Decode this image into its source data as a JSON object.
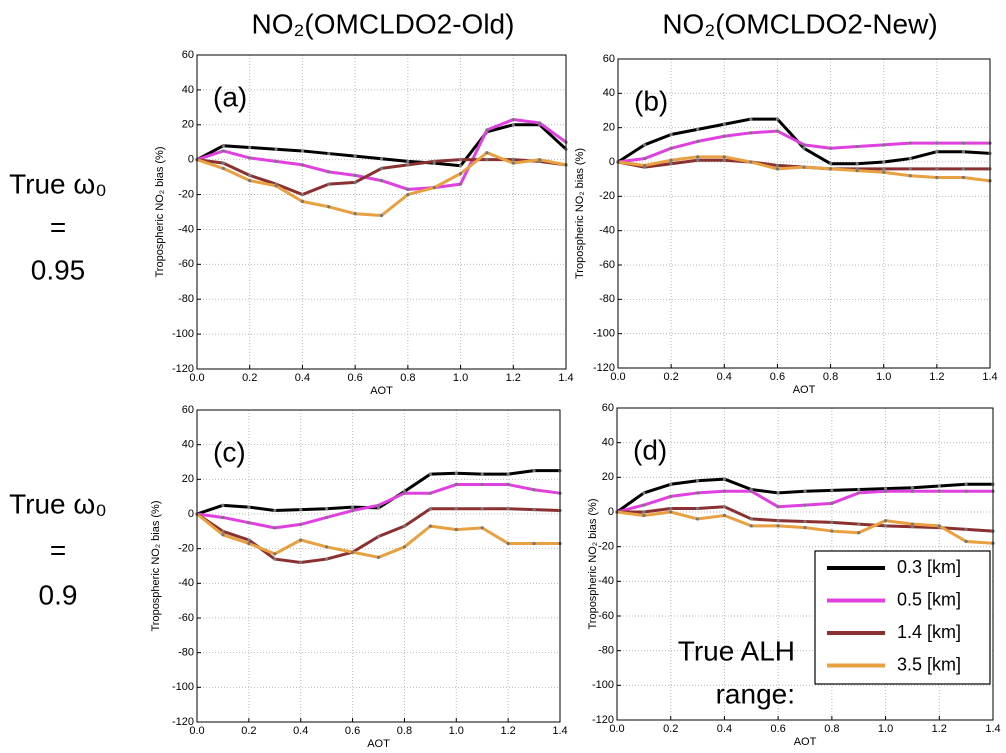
{
  "column_titles": [
    "NO₂(OMCLDO2-Old)",
    "NO₂(OMCLDO2-New)"
  ],
  "row_labels": [
    [
      "True ω₀",
      "=",
      "0.95"
    ],
    [
      "True ω₀",
      "=",
      "0.9"
    ]
  ],
  "legend": {
    "title": [
      "True ALH",
      "range:"
    ]
  },
  "chart_data": [
    {
      "type": "line",
      "label": "(a)",
      "ylabel": "Tropospheric NO₂ bias (%)",
      "xlabel": "AOT",
      "grid": true,
      "x": [
        0,
        0.1,
        0.2,
        0.3,
        0.4,
        0.5,
        0.6,
        0.7,
        0.8,
        0.9,
        1.0,
        1.1,
        1.2,
        1.3,
        1.4
      ],
      "xlim": [
        0,
        1.4
      ],
      "ylim": [
        -120,
        60
      ],
      "xticks": [
        {
          "value": 0,
          "label": "0.0"
        },
        {
          "value": 0.2,
          "label": "0.2"
        },
        {
          "value": 0.4,
          "label": "0.4"
        },
        {
          "value": 0.6,
          "label": "0.6"
        },
        {
          "value": 0.8,
          "label": "0.8"
        },
        {
          "value": 1,
          "label": "1.0"
        },
        {
          "value": 1.2,
          "label": "1.2"
        },
        {
          "value": 1.4,
          "label": "1.4"
        }
      ],
      "yticks": [
        -120,
        -100,
        -80,
        -60,
        -40,
        -20,
        0,
        20,
        40,
        60
      ],
      "series": [
        {
          "color": "#000000",
          "values": [
            0,
            8,
            7,
            6,
            5,
            3.5,
            2,
            0.5,
            -1,
            -2,
            -3.5,
            16,
            20,
            20,
            6
          ]
        },
        {
          "color": "#e040e0",
          "values": [
            0,
            5,
            1,
            -1,
            -3,
            -7,
            -9,
            -12,
            -17,
            -16,
            -14,
            17,
            23,
            21,
            10
          ]
        },
        {
          "color": "#8b3030",
          "values": [
            0,
            -2,
            -9,
            -14,
            -20,
            -14,
            -13,
            -5,
            -3,
            -1,
            0,
            0,
            0,
            -1,
            -3
          ]
        },
        {
          "color": "#e8a040",
          "values": [
            0,
            -5,
            -12,
            -15,
            -24,
            -27,
            -31,
            -32,
            -20,
            -16,
            -8,
            4,
            -2,
            0,
            -3
          ]
        }
      ]
    },
    {
      "type": "line",
      "label": "(b)",
      "ylabel": "Tropospheric NO₂ bias (%)",
      "xlabel": "AOT",
      "grid": true,
      "x": [
        0,
        0.1,
        0.2,
        0.3,
        0.4,
        0.5,
        0.6,
        0.7,
        0.8,
        0.9,
        1.0,
        1.1,
        1.2,
        1.3,
        1.4
      ],
      "xlim": [
        0,
        1.4
      ],
      "ylim": [
        -120,
        60
      ],
      "xticks": [
        {
          "value": 0,
          "label": "0.0"
        },
        {
          "value": 0.2,
          "label": "0.2"
        },
        {
          "value": 0.4,
          "label": "0.4"
        },
        {
          "value": 0.6,
          "label": "0.6"
        },
        {
          "value": 0.8,
          "label": "0.8"
        },
        {
          "value": 1,
          "label": "1.0"
        },
        {
          "value": 1.2,
          "label": "1.2"
        },
        {
          "value": 1.4,
          "label": "1.4"
        }
      ],
      "yticks": [
        -120,
        -100,
        -80,
        -60,
        -40,
        -20,
        0,
        20,
        40,
        60
      ],
      "series": [
        {
          "color": "#000000",
          "values": [
            0,
            10,
            16,
            19,
            22,
            25,
            25,
            8,
            -1,
            -1,
            0,
            2,
            6,
            6,
            5
          ]
        },
        {
          "color": "#e040e0",
          "values": [
            0,
            2,
            8,
            12,
            15,
            17,
            18,
            10,
            8,
            9,
            10,
            11,
            11,
            11,
            11
          ]
        },
        {
          "color": "#8b3030",
          "values": [
            0,
            -3,
            -1,
            1,
            1,
            0,
            -2,
            -3,
            -4,
            -4,
            -4,
            -4,
            -4,
            -4,
            -4
          ]
        },
        {
          "color": "#e8a040",
          "values": [
            0,
            -2,
            1,
            3,
            3,
            0,
            -4,
            -3,
            -4,
            -5,
            -6,
            -8,
            -9,
            -9,
            -11
          ]
        }
      ]
    },
    {
      "type": "line",
      "label": "(c)",
      "ylabel": "Tropospheric NO₂ bias (%)",
      "xlabel": "AOT",
      "grid": true,
      "x": [
        0,
        0.1,
        0.2,
        0.3,
        0.4,
        0.5,
        0.6,
        0.7,
        0.8,
        0.9,
        1.0,
        1.1,
        1.2,
        1.3,
        1.4
      ],
      "xlim": [
        0,
        1.4
      ],
      "ylim": [
        -120,
        60
      ],
      "xticks": [
        {
          "value": 0,
          "label": "0.0"
        },
        {
          "value": 0.2,
          "label": "0.2"
        },
        {
          "value": 0.4,
          "label": "0.4"
        },
        {
          "value": 0.6,
          "label": "0.6"
        },
        {
          "value": 0.8,
          "label": "0.8"
        },
        {
          "value": 1,
          "label": "1.0"
        },
        {
          "value": 1.2,
          "label": "1.2"
        },
        {
          "value": 1.4,
          "label": "1.4"
        }
      ],
      "yticks": [
        -120,
        -100,
        -80,
        -60,
        -40,
        -20,
        0,
        20,
        40,
        60
      ],
      "series": [
        {
          "color": "#000000",
          "values": [
            0,
            5,
            4,
            2,
            2.5,
            3,
            4,
            3.5,
            13,
            23,
            23.5,
            23,
            23,
            25,
            25
          ]
        },
        {
          "color": "#e040e0",
          "values": [
            0,
            -2,
            -5,
            -8,
            -6,
            -2,
            2,
            5,
            12,
            12,
            17,
            17,
            17,
            14,
            12
          ]
        },
        {
          "color": "#8b3030",
          "values": [
            0,
            -10,
            -15,
            -26,
            -28,
            -26,
            -22,
            -13,
            -7,
            3,
            3,
            3,
            3,
            2.5,
            2
          ]
        },
        {
          "color": "#e8a040",
          "values": [
            0,
            -12,
            -17,
            -23,
            -15,
            -19,
            -22,
            -25,
            -19,
            -7,
            -9,
            -8,
            -17,
            -17,
            -17
          ]
        }
      ]
    },
    {
      "type": "line",
      "label": "(d)",
      "ylabel": "Tropospheric NO₂ bias (%)",
      "xlabel": "AOT",
      "grid": true,
      "x": [
        0,
        0.1,
        0.2,
        0.3,
        0.4,
        0.5,
        0.6,
        0.7,
        0.8,
        0.9,
        1.0,
        1.1,
        1.2,
        1.3,
        1.4
      ],
      "xlim": [
        0,
        1.4
      ],
      "ylim": [
        -120,
        60
      ],
      "xticks": [
        {
          "value": 0,
          "label": "0.0"
        },
        {
          "value": 0.2,
          "label": "0.2"
        },
        {
          "value": 0.4,
          "label": "0.4"
        },
        {
          "value": 0.6,
          "label": "0.6"
        },
        {
          "value": 0.8,
          "label": "0.8"
        },
        {
          "value": 1,
          "label": "1.0"
        },
        {
          "value": 1.2,
          "label": "1.2"
        },
        {
          "value": 1.4,
          "label": "1.4"
        }
      ],
      "yticks": [
        -120,
        -100,
        -80,
        -60,
        -40,
        -20,
        0,
        20,
        40,
        60
      ],
      "series": [
        {
          "name": "0.3 [km]",
          "color": "#000000",
          "values": [
            0,
            11,
            16,
            18,
            19,
            13,
            11,
            12,
            12.5,
            13,
            13.5,
            14,
            15,
            16,
            16
          ]
        },
        {
          "name": "0.5 [km]",
          "color": "#e040e0",
          "values": [
            0,
            4,
            9,
            11,
            12,
            12,
            3,
            4,
            5,
            11,
            12,
            12,
            12,
            12,
            12
          ]
        },
        {
          "name": "1.4 [km]",
          "color": "#8b3030",
          "values": [
            0,
            0,
            2,
            2,
            3,
            -4,
            -5,
            -5.5,
            -6,
            -7,
            -8,
            -8.5,
            -9,
            -10,
            -11
          ]
        },
        {
          "name": "3.5 [km]",
          "color": "#e8a040",
          "values": [
            0,
            -2,
            0,
            -4,
            -2,
            -8,
            -8,
            -9,
            -11,
            -12,
            -5,
            -7,
            -8,
            -17,
            -18
          ]
        }
      ]
    }
  ]
}
